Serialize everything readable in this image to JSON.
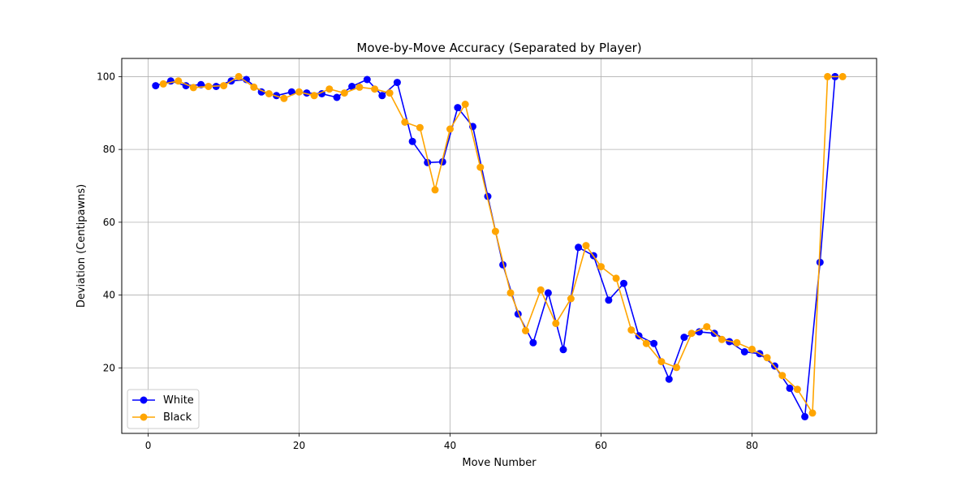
{
  "chart_data": {
    "type": "line",
    "title": "Move-by-Move Accuracy (Separated by Player)",
    "xlabel": "Move Number",
    "ylabel": "Deviation (Centipawns)",
    "xlim": [
      -3.5,
      96.5
    ],
    "ylim": [
      2,
      105
    ],
    "x_ticks": [
      0,
      20,
      40,
      60,
      80
    ],
    "y_ticks": [
      20,
      40,
      60,
      80,
      100
    ],
    "grid": true,
    "legend_position": "lower-left",
    "series": [
      {
        "name": "White",
        "color": "#0000ff",
        "x": [
          1,
          3,
          5,
          7,
          9,
          11,
          13,
          15,
          17,
          19,
          21,
          23,
          25,
          27,
          29,
          31,
          33,
          35,
          37,
          39,
          41,
          43,
          45,
          47,
          49,
          51,
          53,
          55,
          57,
          59,
          61,
          63,
          65,
          67,
          69,
          71,
          73,
          75,
          77,
          79,
          81,
          83,
          85,
          87,
          89,
          91
        ],
        "y": [
          97.5,
          98.8,
          97.5,
          97.8,
          97.3,
          98.8,
          99.2,
          95.8,
          94.8,
          95.8,
          95.5,
          95.3,
          94.3,
          97.3,
          99.2,
          94.8,
          98.4,
          82.2,
          76.4,
          76.6,
          91.5,
          86.3,
          67.1,
          48.3,
          34.8,
          26.9,
          40.6,
          25.0,
          53.1,
          50.8,
          38.6,
          43.2,
          28.8,
          26.7,
          16.9,
          28.4,
          29.9,
          29.5,
          27.2,
          24.4,
          23.9,
          20.5,
          14.4,
          6.6,
          49.0,
          100.0
        ]
      },
      {
        "name": "Black",
        "color": "#ffa500",
        "x": [
          2,
          4,
          6,
          8,
          10,
          12,
          14,
          16,
          18,
          20,
          22,
          24,
          26,
          28,
          30,
          32,
          34,
          36,
          38,
          40,
          42,
          44,
          46,
          48,
          50,
          52,
          54,
          56,
          58,
          60,
          62,
          64,
          66,
          68,
          70,
          72,
          74,
          76,
          78,
          80,
          82,
          84,
          86,
          88,
          90,
          92
        ],
        "y": [
          98.0,
          98.8,
          97.0,
          97.3,
          97.5,
          100.0,
          97.1,
          95.3,
          94.0,
          95.8,
          94.8,
          96.6,
          95.5,
          97.1,
          96.6,
          95.5,
          87.5,
          86.0,
          68.9,
          85.6,
          92.4,
          75.1,
          57.5,
          40.6,
          30.2,
          41.4,
          32.2,
          39.0,
          53.6,
          47.8,
          44.6,
          30.4,
          26.7,
          21.7,
          20.1,
          29.5,
          31.3,
          27.8,
          26.9,
          25.1,
          22.8,
          17.9,
          14.1,
          7.6,
          100.0,
          100.0
        ]
      }
    ]
  }
}
